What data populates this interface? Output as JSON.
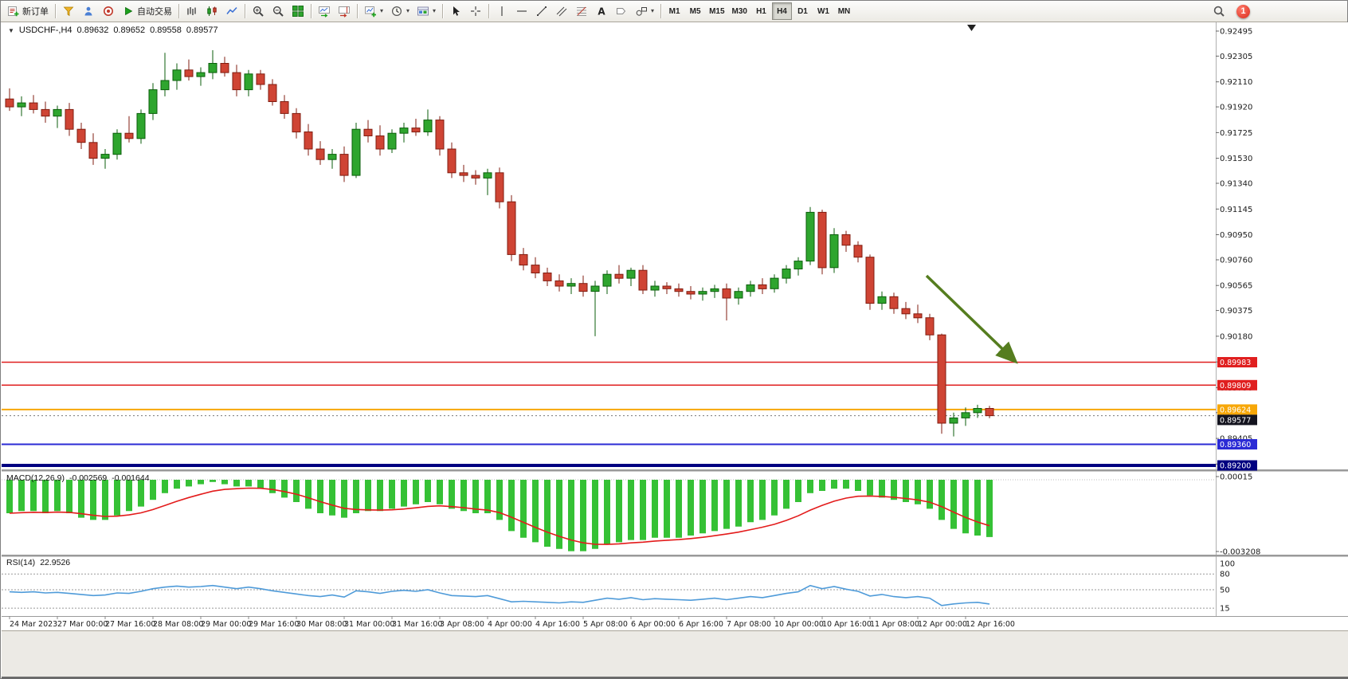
{
  "icons": {
    "dropdown_caret": "▾",
    "expander": "▼",
    "text_tool": "A"
  },
  "toolbar": {
    "new_order_label": "新订单",
    "auto_trading_label": "自动交易",
    "timeframes": [
      "M1",
      "M5",
      "M15",
      "M30",
      "H1",
      "H4",
      "D1",
      "W1",
      "MN"
    ],
    "active_timeframe": "H4",
    "notification_count": "1"
  },
  "chart_title": {
    "symbol_period": "USDCHF-,H4",
    "open": "0.89632",
    "high": "0.89652",
    "low": "0.89558",
    "close": "0.89577"
  },
  "macd_panel": {
    "label": "MACD(12,26,9)",
    "main_value": "-0.002569",
    "signal_value": "-0.001644",
    "axis_top": "0.00015",
    "axis_bottom": "-0.003208"
  },
  "rsi_panel": {
    "label": "RSI(14)",
    "value": "22.9526",
    "axis_labels": [
      "100",
      "80",
      "50",
      "15"
    ]
  },
  "chart_data": {
    "type": "candlestick",
    "symbol": "USDCHF-",
    "timeframe": "H4",
    "ylim": [
      0.8918,
      0.9255
    ],
    "price_ticks": [
      0.92495,
      0.92305,
      0.9211,
      0.9192,
      0.91725,
      0.9153,
      0.9134,
      0.91145,
      0.9095,
      0.9076,
      0.90565,
      0.90375,
      0.9018,
      0.89985,
      0.8979,
      0.896,
      0.89405,
      0.8921
    ],
    "time_labels": [
      "24 Mar 2023",
      "27 Mar 00:00",
      "27 Mar 16:00",
      "28 Mar 08:00",
      "29 Mar 00:00",
      "29 Mar 16:00",
      "30 Mar 08:00",
      "31 Mar 00:00",
      "31 Mar 16:00",
      "3 Apr 08:00",
      "4 Apr 00:00",
      "4 Apr 16:00",
      "5 Apr 08:00",
      "6 Apr 00:00",
      "6 Apr 16:00",
      "7 Apr 08:00",
      "10 Apr 00:00",
      "10 Apr 16:00",
      "11 Apr 08:00",
      "12 Apr 00:00",
      "12 Apr 16:00"
    ],
    "candles": [
      [
        0.9198,
        0.9206,
        0.9189,
        0.9192
      ],
      [
        0.9192,
        0.92,
        0.9185,
        0.9195
      ],
      [
        0.9195,
        0.9201,
        0.9187,
        0.919
      ],
      [
        0.919,
        0.9196,
        0.918,
        0.9185
      ],
      [
        0.9185,
        0.9193,
        0.9176,
        0.919
      ],
      [
        0.919,
        0.9195,
        0.917,
        0.9175
      ],
      [
        0.9175,
        0.918,
        0.916,
        0.9165
      ],
      [
        0.9165,
        0.9172,
        0.9148,
        0.9153
      ],
      [
        0.9153,
        0.916,
        0.9145,
        0.9156
      ],
      [
        0.9156,
        0.9175,
        0.9152,
        0.9172
      ],
      [
        0.9172,
        0.9185,
        0.9165,
        0.9168
      ],
      [
        0.9168,
        0.919,
        0.9164,
        0.9187
      ],
      [
        0.9187,
        0.921,
        0.9182,
        0.9205
      ],
      [
        0.9205,
        0.9233,
        0.92,
        0.9212
      ],
      [
        0.9212,
        0.9225,
        0.9205,
        0.922
      ],
      [
        0.922,
        0.9228,
        0.9212,
        0.9215
      ],
      [
        0.9215,
        0.9222,
        0.9208,
        0.9218
      ],
      [
        0.9218,
        0.9235,
        0.9213,
        0.9225
      ],
      [
        0.9225,
        0.923,
        0.9215,
        0.9218
      ],
      [
        0.9218,
        0.9224,
        0.92,
        0.9205
      ],
      [
        0.9205,
        0.922,
        0.92,
        0.9217
      ],
      [
        0.9217,
        0.922,
        0.9205,
        0.9209
      ],
      [
        0.9209,
        0.9213,
        0.9193,
        0.9196
      ],
      [
        0.9196,
        0.9201,
        0.9183,
        0.9187
      ],
      [
        0.9187,
        0.9191,
        0.9168,
        0.9173
      ],
      [
        0.9173,
        0.9179,
        0.9155,
        0.916
      ],
      [
        0.916,
        0.9166,
        0.9148,
        0.9152
      ],
      [
        0.9152,
        0.916,
        0.9145,
        0.9156
      ],
      [
        0.9156,
        0.9162,
        0.9135,
        0.914
      ],
      [
        0.914,
        0.918,
        0.9138,
        0.9175
      ],
      [
        0.9175,
        0.9182,
        0.9165,
        0.917
      ],
      [
        0.917,
        0.9178,
        0.9155,
        0.916
      ],
      [
        0.916,
        0.9175,
        0.9157,
        0.9172
      ],
      [
        0.9172,
        0.918,
        0.9165,
        0.9176
      ],
      [
        0.9176,
        0.9183,
        0.917,
        0.9173
      ],
      [
        0.9173,
        0.919,
        0.917,
        0.9182
      ],
      [
        0.9182,
        0.9185,
        0.9155,
        0.916
      ],
      [
        0.916,
        0.9165,
        0.9138,
        0.9142
      ],
      [
        0.9142,
        0.9148,
        0.9135,
        0.914
      ],
      [
        0.914,
        0.9144,
        0.9133,
        0.9138
      ],
      [
        0.9138,
        0.9145,
        0.9125,
        0.9142
      ],
      [
        0.9142,
        0.9146,
        0.9115,
        0.912
      ],
      [
        0.912,
        0.9125,
        0.9075,
        0.908
      ],
      [
        0.908,
        0.9085,
        0.9068,
        0.9072
      ],
      [
        0.9072,
        0.9078,
        0.9062,
        0.9066
      ],
      [
        0.9066,
        0.907,
        0.9056,
        0.906
      ],
      [
        0.906,
        0.9065,
        0.9052,
        0.9056
      ],
      [
        0.9056,
        0.9062,
        0.905,
        0.9058
      ],
      [
        0.9058,
        0.9064,
        0.9048,
        0.9052
      ],
      [
        0.9052,
        0.906,
        0.9018,
        0.9056
      ],
      [
        0.9056,
        0.9068,
        0.905,
        0.9065
      ],
      [
        0.9065,
        0.9072,
        0.9058,
        0.9062
      ],
      [
        0.9062,
        0.907,
        0.9056,
        0.9068
      ],
      [
        0.9068,
        0.9072,
        0.905,
        0.9053
      ],
      [
        0.9053,
        0.906,
        0.9048,
        0.9056
      ],
      [
        0.9056,
        0.9059,
        0.905,
        0.9054
      ],
      [
        0.9054,
        0.9058,
        0.9048,
        0.9052
      ],
      [
        0.9052,
        0.9056,
        0.9046,
        0.905
      ],
      [
        0.905,
        0.9055,
        0.9045,
        0.9052
      ],
      [
        0.9052,
        0.9057,
        0.9047,
        0.9054
      ],
      [
        0.9054,
        0.9058,
        0.903,
        0.9047
      ],
      [
        0.9047,
        0.9055,
        0.9042,
        0.9052
      ],
      [
        0.9052,
        0.906,
        0.9048,
        0.9057
      ],
      [
        0.9057,
        0.9062,
        0.905,
        0.9054
      ],
      [
        0.9054,
        0.9065,
        0.9051,
        0.9062
      ],
      [
        0.9062,
        0.9072,
        0.9058,
        0.9069
      ],
      [
        0.9069,
        0.9078,
        0.9064,
        0.9075
      ],
      [
        0.9075,
        0.9116,
        0.9072,
        0.9112
      ],
      [
        0.9112,
        0.9114,
        0.9065,
        0.907
      ],
      [
        0.907,
        0.91,
        0.9066,
        0.9095
      ],
      [
        0.9095,
        0.9098,
        0.9082,
        0.9087
      ],
      [
        0.9087,
        0.909,
        0.9074,
        0.9078
      ],
      [
        0.9078,
        0.908,
        0.9038,
        0.9043
      ],
      [
        0.9043,
        0.9052,
        0.9038,
        0.9048
      ],
      [
        0.9048,
        0.9051,
        0.9035,
        0.9039
      ],
      [
        0.9039,
        0.9044,
        0.9031,
        0.9035
      ],
      [
        0.9035,
        0.9042,
        0.9028,
        0.9032
      ],
      [
        0.9032,
        0.9035,
        0.9015,
        0.9019
      ],
      [
        0.9019,
        0.902,
        0.8944,
        0.8952
      ],
      [
        0.8952,
        0.896,
        0.8942,
        0.8956
      ],
      [
        0.8956,
        0.8964,
        0.895,
        0.896
      ],
      [
        0.896,
        0.8966,
        0.8956,
        0.89632
      ],
      [
        0.89632,
        0.89652,
        0.89558,
        0.89577
      ]
    ],
    "hlines": [
      {
        "price": 0.89983,
        "color": "#e01f1f",
        "width": 1.5
      },
      {
        "price": 0.89809,
        "color": "#e01f1f",
        "width": 1.5
      },
      {
        "price": 0.89624,
        "color": "#f7a708",
        "width": 2
      },
      {
        "price": 0.8936,
        "color": "#2b2bd5",
        "width": 2
      },
      {
        "price": 0.892,
        "color": "#000080",
        "width": 4
      }
    ],
    "current_price": {
      "value": 0.89577,
      "badge_color": "#14141f"
    },
    "annotation_arrow": {
      "start": {
        "index": 76.7,
        "price": 0.90639
      },
      "end": {
        "index": 84.1,
        "price": 0.89992
      },
      "color": "#557d1f"
    },
    "colors": {
      "up": "#2ea52e",
      "down": "#cf4434",
      "bg": "#ffffff"
    },
    "indicators": [
      {
        "type": "bar",
        "name": "MACD",
        "params": "12,26,9",
        "ylim": [
          -0.003208,
          0.00015
        ],
        "hist_color": "#35c135",
        "signal_color": "#e31b1b",
        "signal_method": "ema9",
        "values": [
          -0.0015,
          -0.0014,
          -0.0014,
          -0.0015,
          -0.0014,
          -0.0015,
          -0.0017,
          -0.0018,
          -0.0018,
          -0.0016,
          -0.0014,
          -0.0012,
          -0.0009,
          -0.0006,
          -0.0004,
          -0.0003,
          -0.0002,
          -0.0001,
          -0.0002,
          -0.0003,
          -0.0003,
          -0.0004,
          -0.0006,
          -0.0008,
          -0.001,
          -0.0013,
          -0.0015,
          -0.0016,
          -0.0017,
          -0.0015,
          -0.0014,
          -0.0014,
          -0.0013,
          -0.0012,
          -0.0011,
          -0.001,
          -0.0011,
          -0.0013,
          -0.0014,
          -0.0015,
          -0.0015,
          -0.0018,
          -0.0023,
          -0.0026,
          -0.0028,
          -0.003,
          -0.0031,
          -0.0032,
          -0.0032,
          -0.0031,
          -0.0029,
          -0.0028,
          -0.0027,
          -0.0027,
          -0.0026,
          -0.0026,
          -0.0026,
          -0.0025,
          -0.0024,
          -0.0023,
          -0.0022,
          -0.0021,
          -0.0019,
          -0.0018,
          -0.0016,
          -0.0013,
          -0.001,
          -0.0006,
          -0.0005,
          -0.0004,
          -0.0004,
          -0.0005,
          -0.0007,
          -0.0008,
          -0.0009,
          -0.001,
          -0.0011,
          -0.0013,
          -0.0018,
          -0.0022,
          -0.0024,
          -0.0025,
          -0.002569
        ]
      },
      {
        "type": "line",
        "name": "RSI",
        "params": "14",
        "ylim": [
          0,
          100
        ],
        "levels": [
          80,
          50,
          15
        ],
        "line_color": "#4f9bd9",
        "values": [
          46,
          45,
          46,
          44,
          45,
          43,
          41,
          39,
          40,
          44,
          43,
          47,
          52,
          55,
          57,
          55,
          56,
          58,
          55,
          52,
          55,
          52,
          48,
          45,
          42,
          39,
          37,
          40,
          36,
          48,
          46,
          43,
          47,
          49,
          47,
          50,
          44,
          39,
          38,
          37,
          39,
          33,
          27,
          28,
          27,
          26,
          25,
          27,
          26,
          30,
          34,
          32,
          35,
          31,
          33,
          32,
          31,
          30,
          32,
          34,
          31,
          34,
          37,
          35,
          39,
          43,
          46,
          58,
          52,
          56,
          51,
          47,
          38,
          41,
          37,
          35,
          37,
          34,
          20,
          23,
          25,
          26,
          22.95
        ]
      }
    ]
  }
}
